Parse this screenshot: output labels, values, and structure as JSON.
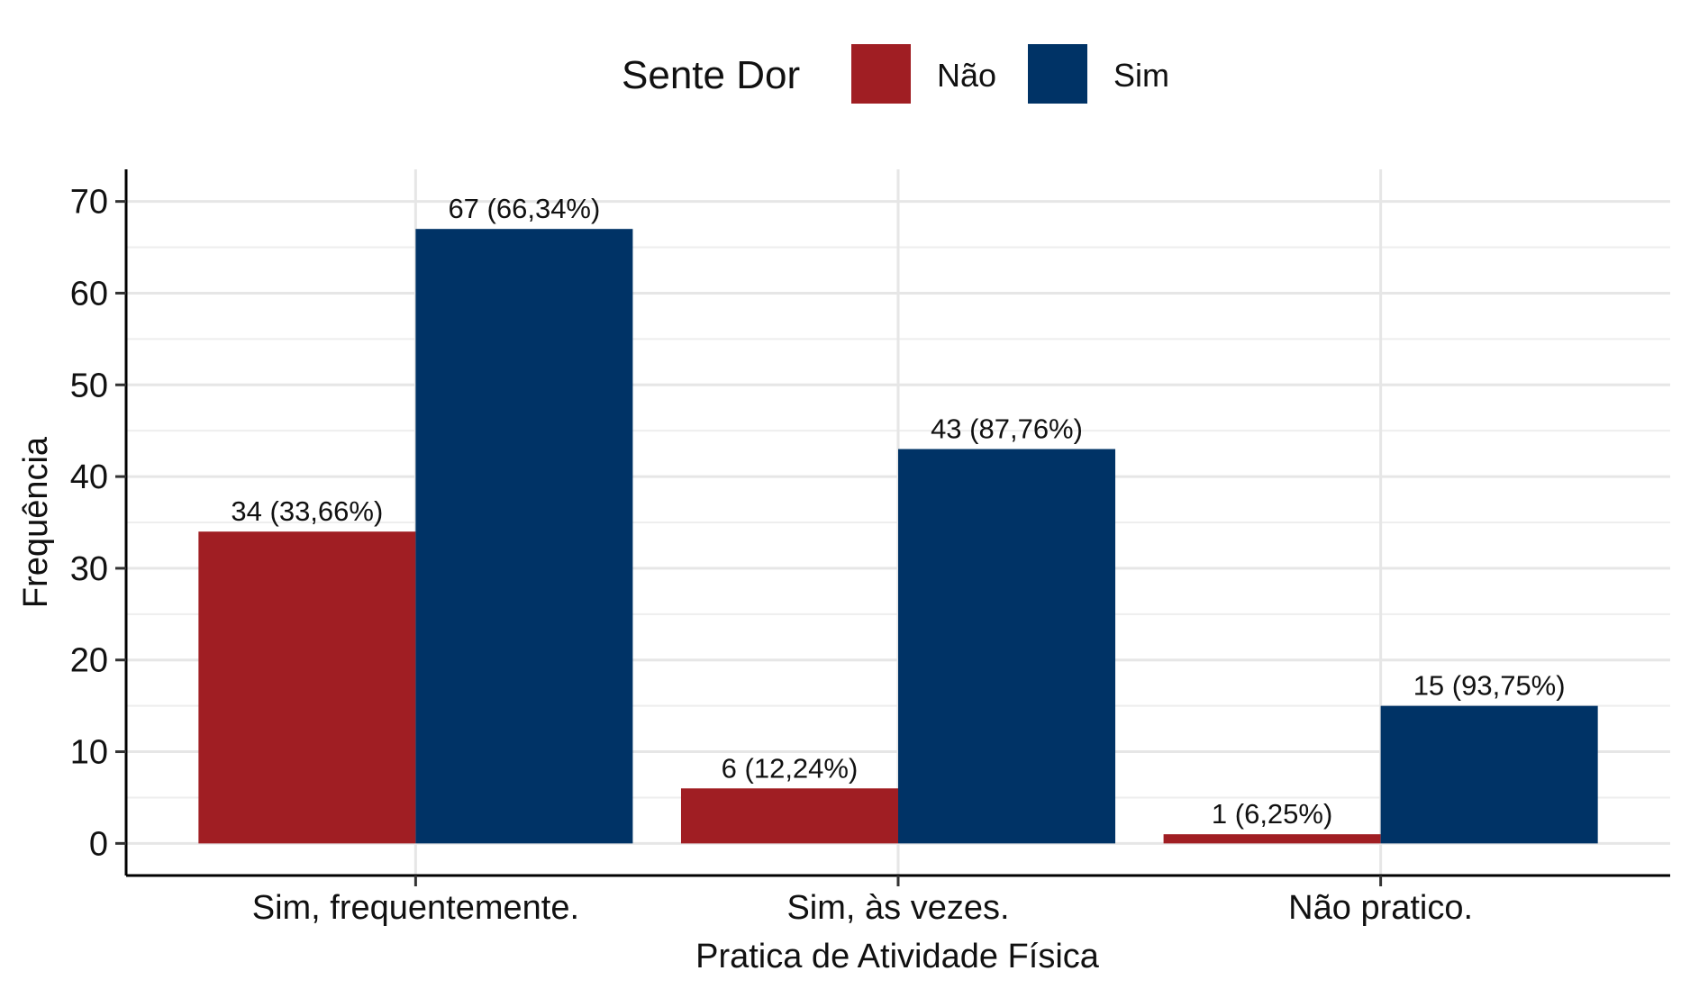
{
  "chart_data": {
    "type": "bar",
    "categories": [
      "Sim, frequentemente.",
      "Sim, às vezes.",
      "Não pratico."
    ],
    "series": [
      {
        "name": "Não",
        "values": [
          34,
          6,
          1
        ],
        "labels": [
          "34 (33,66%)",
          "6 (12,24%)",
          "1 (6,25%)"
        ],
        "color": "#a01e23"
      },
      {
        "name": "Sim",
        "values": [
          67,
          43,
          15
        ],
        "labels": [
          "67 (66,34%)",
          "43 (87,76%)",
          "15 (93,75%)"
        ],
        "color": "#003366"
      }
    ],
    "xlabel": "Pratica de Atividade Física",
    "ylabel": "Frequência",
    "ylim": [
      -3.5,
      73.5
    ],
    "yticks": [
      0,
      10,
      20,
      30,
      40,
      50,
      60,
      70
    ],
    "grid": true,
    "legend": {
      "title": "Sente Dor",
      "position": "top"
    }
  }
}
